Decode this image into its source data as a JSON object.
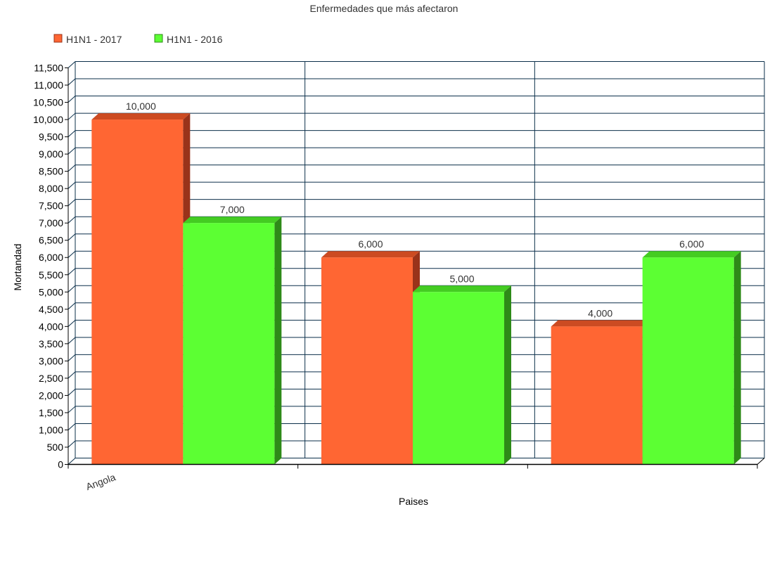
{
  "chart_data": {
    "type": "bar",
    "title": "Enfermedades que más afectaron",
    "xlabel": "Paises",
    "ylabel": "Mortandad",
    "categories": [
      "Angola",
      "",
      ""
    ],
    "series": [
      {
        "name": "H1N1 - 2017",
        "values": [
          10000,
          6000,
          4000
        ]
      },
      {
        "name": "H1N1 - 2016",
        "values": [
          7000,
          5000,
          6000
        ]
      }
    ],
    "data_labels": [
      [
        "10,000",
        "6,000",
        "4,000"
      ],
      [
        "7,000",
        "5,000",
        "6,000"
      ]
    ],
    "ylim": [
      0,
      11500
    ],
    "ytick_step": 500,
    "ytick_labels": [
      "0",
      "500",
      "1,000",
      "1,500",
      "2,000",
      "2,500",
      "3,000",
      "3,500",
      "4,000",
      "4,500",
      "5,000",
      "5,500",
      "6,000",
      "6,500",
      "7,000",
      "7,500",
      "8,000",
      "8,500",
      "9,000",
      "9,500",
      "10,000",
      "10,500",
      "11,000",
      "11,500"
    ],
    "grid": true,
    "legend_position": "top-left",
    "colors": {
      "series": [
        "#ff6633",
        "#5cff33"
      ],
      "series_side": [
        "#99331a",
        "#2e8a18"
      ],
      "series_top": [
        "#cc4b22",
        "#44cc22"
      ],
      "grid": "#0b2f4a",
      "axis": "#000000",
      "text": "#333333"
    }
  }
}
